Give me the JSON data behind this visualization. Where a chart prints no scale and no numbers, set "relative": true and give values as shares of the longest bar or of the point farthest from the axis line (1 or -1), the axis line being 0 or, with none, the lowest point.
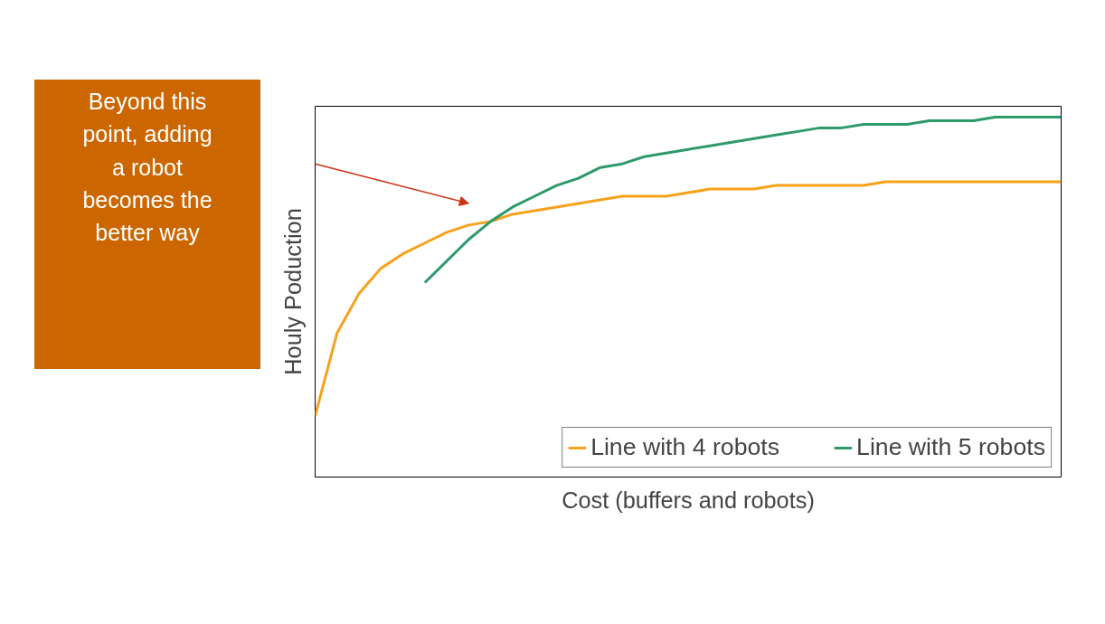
{
  "chart_data": {
    "type": "line",
    "relative": true,
    "xlabel": "Cost (buffers and robots)",
    "ylabel": "Houly Poduction",
    "categories": [
      null,
      null,
      null,
      null,
      null,
      null,
      null,
      null,
      null,
      null,
      null,
      null,
      null,
      null,
      null,
      null,
      null,
      null,
      null,
      null,
      null,
      null,
      null,
      null,
      null,
      null,
      null,
      null,
      null,
      null,
      null,
      null,
      null,
      null,
      null
    ],
    "series": [
      {
        "name": "Line with 4 robots",
        "color": "#f7a21b",
        "values": [
          0.17,
          0.4,
          0.51,
          0.58,
          0.62,
          0.65,
          0.68,
          0.7,
          0.71,
          0.73,
          0.74,
          0.75,
          0.76,
          0.77,
          0.78,
          0.78,
          0.78,
          0.79,
          0.8,
          0.8,
          0.8,
          0.81,
          0.81,
          0.81,
          0.81,
          0.81,
          0.82,
          0.82,
          0.82,
          0.82,
          0.82,
          0.82,
          0.82,
          0.82,
          0.82
        ]
      },
      {
        "name": "Line with 5 robots",
        "color": "#2e9a6a",
        "values": [
          null,
          null,
          null,
          null,
          null,
          0.54,
          0.6,
          0.66,
          0.71,
          0.75,
          0.78,
          0.81,
          0.83,
          0.86,
          0.87,
          0.89,
          0.9,
          0.91,
          0.92,
          0.93,
          0.94,
          0.95,
          0.96,
          0.97,
          0.97,
          0.98,
          0.98,
          0.98,
          0.99,
          0.99,
          0.99,
          1.0,
          1.0,
          1.0,
          1.0
        ]
      }
    ],
    "annotations": [
      "Beyond this\npoint, adding\na robot\nbecomes the\nbetter way"
    ],
    "legend": "bottom",
    "grid": false,
    "marker": "none",
    "line_style": "solid"
  }
}
